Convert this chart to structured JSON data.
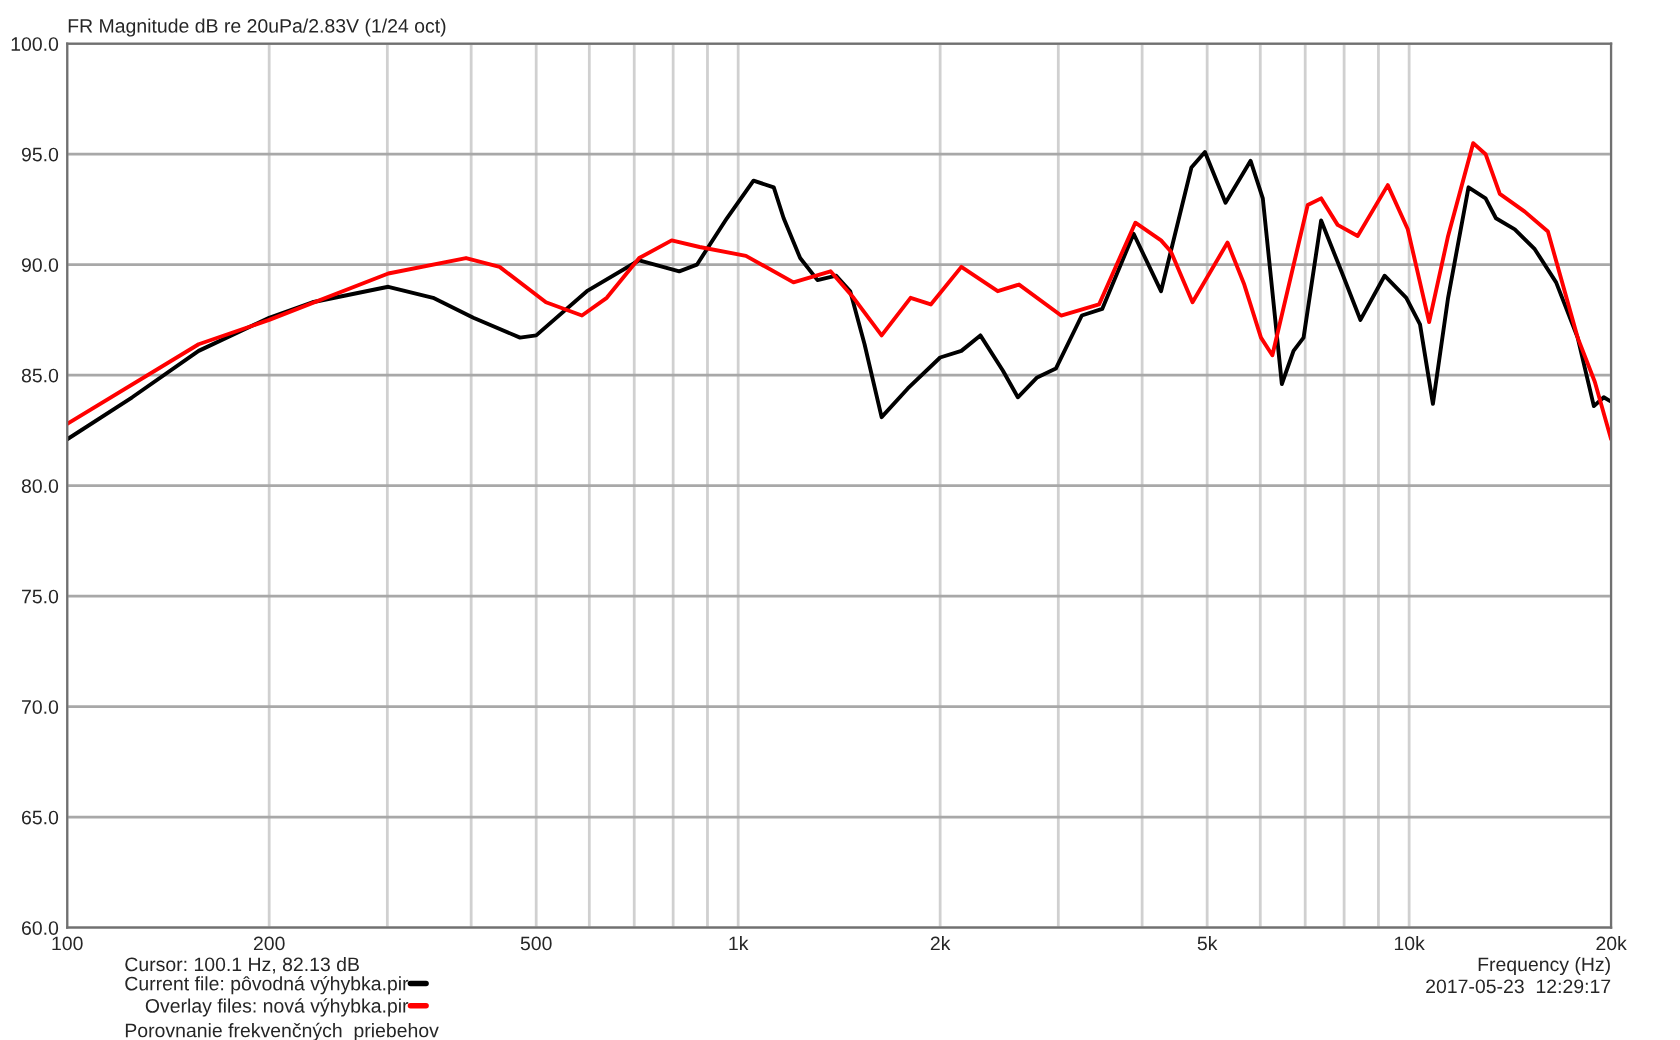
{
  "chart_data": {
    "type": "line",
    "title": "FR Magnitude dB re 20uPa/2.83V (1/24 oct)",
    "xlabel": "Frequency (Hz)",
    "log": "x",
    "grid": true,
    "legend": "bottom left",
    "marker": "none",
    "line_style": "solid",
    "xlim": [
      100,
      20000
    ],
    "ylim": [
      60,
      100
    ],
    "xticks": [
      {
        "value": 100,
        "label": "100"
      },
      {
        "value": 200,
        "label": "200"
      },
      {
        "value": 300,
        "label": null
      },
      {
        "value": 400,
        "label": null
      },
      {
        "value": 500,
        "label": "500"
      },
      {
        "value": 600,
        "label": null
      },
      {
        "value": 700,
        "label": null
      },
      {
        "value": 800,
        "label": null
      },
      {
        "value": 900,
        "label": null
      },
      {
        "value": 1000,
        "label": "1k"
      },
      {
        "value": 2000,
        "label": "2k"
      },
      {
        "value": 3000,
        "label": null
      },
      {
        "value": 4000,
        "label": null
      },
      {
        "value": 5000,
        "label": "5k"
      },
      {
        "value": 6000,
        "label": null
      },
      {
        "value": 7000,
        "label": null
      },
      {
        "value": 8000,
        "label": null
      },
      {
        "value": 9000,
        "label": null
      },
      {
        "value": 10000,
        "label": "10k"
      },
      {
        "value": 20000,
        "label": "20k"
      }
    ],
    "yticks": [
      {
        "value": 60,
        "label": "60.0"
      },
      {
        "value": 65,
        "label": "65.0"
      },
      {
        "value": 70,
        "label": "70.0"
      },
      {
        "value": 75,
        "label": "75.0"
      },
      {
        "value": 80,
        "label": "80.0"
      },
      {
        "value": 85,
        "label": "85.0"
      },
      {
        "value": 90,
        "label": "90.0"
      },
      {
        "value": 95,
        "label": "95.0"
      },
      {
        "value": 100,
        "label": "100.0"
      }
    ],
    "annotations": [
      "Cursor: 100.1 Hz, 82.13 dB",
      "Porovnanie frekvenčných  priebehov",
      "2017-05-23  12:29:17"
    ],
    "series": [
      {
        "name": "Current file: pôvodná výhybka.pir",
        "color": "#000000",
        "x": [
          100,
          125,
          157,
          200,
          232,
          301,
          351,
          403,
          473,
          500,
          595,
          712,
          817,
          868,
          962,
          1054,
          1130,
          1169,
          1237,
          1313,
          1400,
          1469,
          1543,
          1636,
          1790,
          2000,
          2151,
          2296,
          2481,
          2611,
          2790,
          2975,
          3252,
          3488,
          3885,
          4268,
          4737,
          4962,
          5325,
          5804,
          6052,
          6461,
          6725,
          6961,
          7393,
          7925,
          8461,
          9192,
          9903,
          10380,
          10850,
          11430,
          12260,
          13000,
          13470,
          14370,
          15390,
          16560,
          17830,
          18850,
          19500,
          20000
        ],
        "values": [
          82.1,
          84.0,
          86.1,
          87.6,
          88.3,
          89.0,
          88.5,
          87.6,
          86.7,
          86.8,
          88.8,
          90.2,
          89.7,
          90.0,
          92.1,
          93.8,
          93.5,
          92.1,
          90.3,
          89.3,
          89.5,
          88.8,
          86.4,
          83.1,
          84.4,
          85.8,
          86.1,
          86.8,
          85.2,
          84.0,
          84.9,
          85.3,
          87.7,
          88.0,
          91.4,
          88.8,
          94.4,
          95.1,
          92.8,
          94.7,
          93.0,
          84.6,
          86.1,
          86.7,
          92.0,
          89.7,
          87.5,
          89.5,
          88.5,
          87.3,
          83.7,
          88.5,
          93.5,
          93.0,
          92.1,
          91.6,
          90.7,
          89.2,
          86.7,
          83.6,
          84.0,
          83.8
        ]
      },
      {
        "name": "Overlay files: nová výhybka.pir",
        "color": "#ff0000",
        "x": [
          100,
          157,
          200,
          301,
          393,
          441,
          517,
          585,
          637,
          712,
          796,
          876,
          1027,
          1209,
          1373,
          1486,
          1636,
          1807,
          1937,
          2151,
          2437,
          2622,
          3029,
          3450,
          3908,
          4268,
          4414,
          4755,
          5362,
          5679,
          6014,
          6254,
          7060,
          7393,
          7824,
          8381,
          9293,
          9953,
          10710,
          11430,
          12460,
          13000,
          13650,
          14870,
          16100,
          17830,
          18910,
          20000
        ],
        "values": [
          82.8,
          86.4,
          87.5,
          89.6,
          90.3,
          89.9,
          88.3,
          87.7,
          88.5,
          90.3,
          91.1,
          90.8,
          90.4,
          89.2,
          89.7,
          88.5,
          86.8,
          88.5,
          88.2,
          89.9,
          88.8,
          89.1,
          87.7,
          88.2,
          91.9,
          91.1,
          90.6,
          88.3,
          91.0,
          89.1,
          86.7,
          85.9,
          92.7,
          93.0,
          91.8,
          91.3,
          93.6,
          91.6,
          87.4,
          91.3,
          95.5,
          95.0,
          93.2,
          92.4,
          91.5,
          86.7,
          84.7,
          82.1
        ]
      }
    ]
  }
}
